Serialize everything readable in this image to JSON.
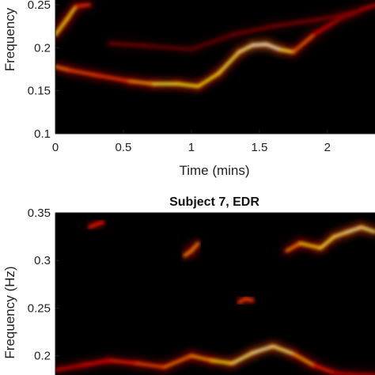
{
  "chart_data": [
    {
      "type": "heatmap",
      "title": "",
      "xlabel": "Time (mins)",
      "ylabel": "Frequency",
      "xlim": [
        0,
        2.35
      ],
      "ylim": [
        0.1,
        0.25
      ],
      "xticks": [
        "0",
        "0.5",
        "1",
        "1.5",
        "2"
      ],
      "yticks": [
        "0.1",
        "0.15",
        "0.2",
        "0.25"
      ],
      "colormap": "hot",
      "ridges": [
        {
          "x": [
            0.0,
            0.1,
            0.3,
            0.55,
            0.72,
            0.9,
            1.05,
            1.2,
            1.35,
            1.45,
            1.55,
            1.65,
            1.75,
            1.9,
            2.1,
            2.35
          ],
          "y": [
            0.178,
            0.174,
            0.168,
            0.161,
            0.158,
            0.158,
            0.155,
            0.17,
            0.195,
            0.203,
            0.204,
            0.198,
            0.195,
            0.215,
            0.235,
            0.25
          ],
          "intensity": [
            0.6,
            0.55,
            0.45,
            0.5,
            0.8,
            0.85,
            0.75,
            0.8,
            0.85,
            0.95,
            1.0,
            0.95,
            0.7,
            0.4,
            0.3,
            0.3
          ]
        },
        {
          "x": [
            0.0,
            0.08,
            0.15,
            0.25
          ],
          "y": [
            0.215,
            0.232,
            0.248,
            0.25
          ],
          "intensity": [
            0.6,
            0.9,
            0.6,
            0.3
          ]
        },
        {
          "x": [
            0.4,
            0.7,
            1.0,
            1.3,
            1.6,
            1.9,
            2.2
          ],
          "y": [
            0.205,
            0.202,
            0.198,
            0.215,
            0.225,
            0.232,
            0.24
          ],
          "intensity": [
            0.2,
            0.18,
            0.15,
            0.18,
            0.2,
            0.2,
            0.2
          ]
        }
      ]
    },
    {
      "type": "heatmap",
      "title": "Subject 7, EDR",
      "xlabel": "",
      "ylabel": "Frequency (Hz)",
      "xlim": [
        0,
        2.35
      ],
      "ylim": [
        0.18,
        0.35
      ],
      "yticks": [
        "0.2",
        "0.25",
        "0.3",
        "0.35"
      ],
      "colormap": "hot",
      "ridges": [
        {
          "x": [
            0.0,
            0.2,
            0.4,
            0.6,
            0.8,
            1.0,
            1.15,
            1.3,
            1.45,
            1.6,
            1.75,
            1.9,
            2.05,
            2.2,
            2.35
          ],
          "y": [
            0.185,
            0.19,
            0.195,
            0.192,
            0.188,
            0.2,
            0.195,
            0.192,
            0.203,
            0.21,
            0.202,
            0.19,
            0.182,
            0.18,
            0.18
          ],
          "intensity": [
            0.3,
            0.35,
            0.4,
            0.45,
            0.55,
            0.6,
            0.7,
            0.85,
            0.9,
            0.95,
            0.8,
            0.5,
            0.35,
            0.3,
            0.3
          ]
        },
        {
          "x": [
            1.7,
            1.8,
            1.95,
            2.05,
            2.15,
            2.25,
            2.35
          ],
          "y": [
            0.31,
            0.318,
            0.313,
            0.325,
            0.33,
            0.335,
            0.33
          ],
          "intensity": [
            0.5,
            0.7,
            0.8,
            0.85,
            0.9,
            0.95,
            0.8
          ]
        },
        {
          "x": [
            0.95,
            1.0,
            1.05
          ],
          "y": [
            0.305,
            0.31,
            0.318
          ],
          "intensity": [
            0.5,
            0.75,
            0.5
          ]
        },
        {
          "x": [
            1.35,
            1.4,
            1.45
          ],
          "y": [
            0.256,
            0.26,
            0.258
          ],
          "intensity": [
            0.4,
            0.6,
            0.4
          ]
        },
        {
          "x": [
            0.25,
            0.3,
            0.35
          ],
          "y": [
            0.335,
            0.338,
            0.34
          ],
          "intensity": [
            0.35,
            0.5,
            0.35
          ]
        }
      ]
    }
  ]
}
